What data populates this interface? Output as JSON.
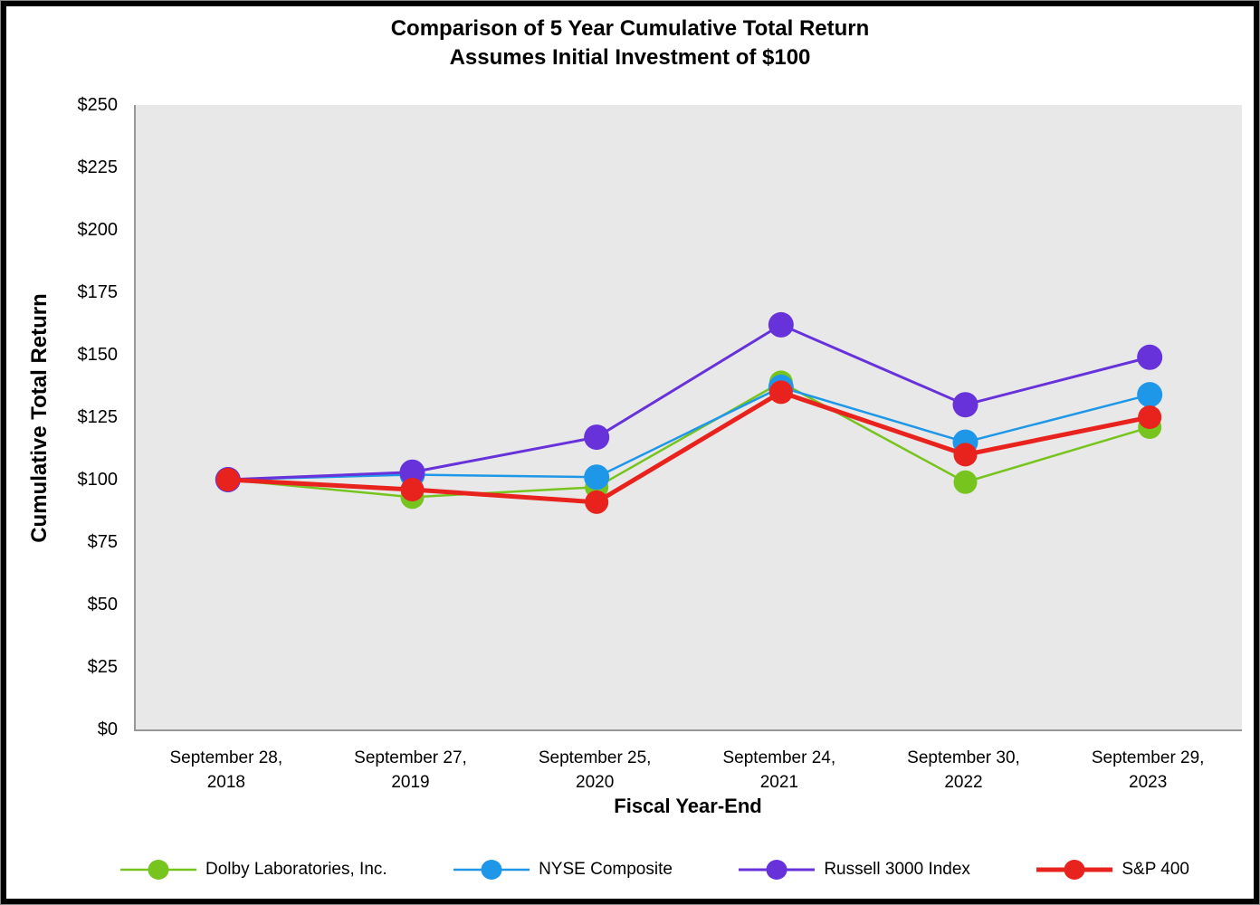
{
  "chart_data": {
    "type": "line",
    "title": "Comparison of 5 Year Cumulative Total Return",
    "subtitle": "Assumes Initial Investment of $100",
    "xlabel": "Fiscal Year-End",
    "ylabel": "Cumulative Total Return",
    "ylim": [
      0,
      250
    ],
    "yticks": [
      0,
      25,
      50,
      75,
      100,
      125,
      150,
      175,
      200,
      225,
      250
    ],
    "ytick_labels": [
      "$0",
      "$25",
      "$50",
      "$75",
      "$100",
      "$125",
      "$150",
      "$175",
      "$200",
      "$225",
      "$250"
    ],
    "categories": [
      "September 28, 2018",
      "September 27, 2019",
      "September 25, 2020",
      "September 24, 2021",
      "September 30, 2022",
      "September 29, 2023"
    ],
    "grid": false,
    "plot_background": "#E8E8E8",
    "legend_position": "bottom",
    "series": [
      {
        "name": "Dolby Laboratories, Inc.",
        "color": "#77C41F",
        "line_width": 2.5,
        "marker_radius": 13,
        "values": [
          100,
          93,
          97,
          139,
          99,
          121
        ]
      },
      {
        "name": "NYSE Composite",
        "color": "#1F97E8",
        "line_width": 2.5,
        "marker_radius": 14,
        "values": [
          100,
          102,
          101,
          137,
          115,
          134
        ]
      },
      {
        "name": "Russell 3000 Index",
        "color": "#6732D9",
        "line_width": 3,
        "marker_radius": 14,
        "values": [
          100,
          103,
          117,
          162,
          130,
          149
        ]
      },
      {
        "name": "S&P 400",
        "color": "#E8231E",
        "line_width": 5,
        "marker_radius": 13,
        "values": [
          100,
          96,
          91,
          135,
          110,
          125
        ]
      }
    ]
  }
}
